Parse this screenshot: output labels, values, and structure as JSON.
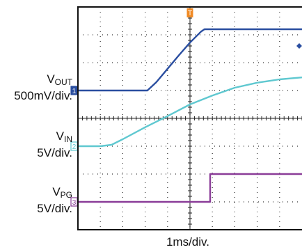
{
  "chart_data": {
    "type": "line",
    "title": "",
    "xlabel": "1ms/div.",
    "xlim": [
      0,
      10
    ],
    "ylim": [
      0,
      8
    ],
    "grid": true,
    "colors": {
      "vout": "#2a4ea0",
      "vin": "#5fc8d0",
      "vpg": "#8a3c98",
      "trigger": "#f08a24"
    },
    "channels": [
      {
        "marker": "1",
        "name_main": "V",
        "name_sub": "OUT",
        "scale": "500mV/div.",
        "color": "#2a4ea0",
        "points": [
          [
            0,
            5.0
          ],
          [
            3.1,
            5.0
          ],
          [
            3.5,
            5.3
          ],
          [
            4.0,
            5.78
          ],
          [
            4.5,
            6.26
          ],
          [
            5.0,
            6.72
          ],
          [
            5.5,
            7.12
          ],
          [
            5.65,
            7.2
          ],
          [
            10,
            7.2
          ]
        ]
      },
      {
        "marker": "2",
        "name_main": "V",
        "name_sub": "IN",
        "scale": "5V/div.",
        "color": "#5fc8d0",
        "points": [
          [
            0,
            3.0
          ],
          [
            1.0,
            3.0
          ],
          [
            1.5,
            3.05
          ],
          [
            2.0,
            3.25
          ],
          [
            3.0,
            3.68
          ],
          [
            4.0,
            4.08
          ],
          [
            5.0,
            4.5
          ],
          [
            6.0,
            4.82
          ],
          [
            7.0,
            5.1
          ],
          [
            8.0,
            5.28
          ],
          [
            9.0,
            5.4
          ],
          [
            10,
            5.47
          ]
        ]
      },
      {
        "marker": "3",
        "name_main": "V",
        "name_sub": "PG",
        "scale": "5V/div.",
        "color": "#8a3c98",
        "points": [
          [
            0,
            1.0
          ],
          [
            5.9,
            1.0
          ],
          [
            5.9,
            2.0
          ],
          [
            10,
            2.0
          ]
        ]
      }
    ],
    "trigger_marker": "T"
  }
}
